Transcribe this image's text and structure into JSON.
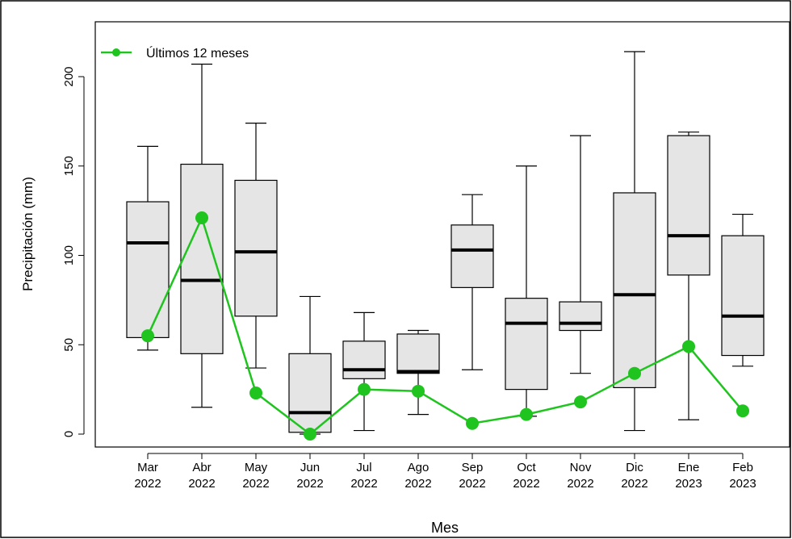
{
  "chart_data": {
    "type": "boxplot",
    "xlabel": "Mes",
    "ylabel": "Precipitación (mm)",
    "categories": [
      {
        "month": "Mar",
        "year": "2022"
      },
      {
        "month": "Abr",
        "year": "2022"
      },
      {
        "month": "May",
        "year": "2022"
      },
      {
        "month": "Jun",
        "year": "2022"
      },
      {
        "month": "Jul",
        "year": "2022"
      },
      {
        "month": "Ago",
        "year": "2022"
      },
      {
        "month": "Sep",
        "year": "2022"
      },
      {
        "month": "Oct",
        "year": "2022"
      },
      {
        "month": "Nov",
        "year": "2022"
      },
      {
        "month": "Dic",
        "year": "2022"
      },
      {
        "month": "Ene",
        "year": "2023"
      },
      {
        "month": "Feb",
        "year": "2023"
      }
    ],
    "ylim": [
      -10,
      230
    ],
    "yticks": [
      0,
      50,
      100,
      150,
      200
    ],
    "boxes": [
      {
        "min": 47,
        "q1": 54,
        "median": 107,
        "q3": 130,
        "max": 161
      },
      {
        "min": 15,
        "q1": 45,
        "median": 86,
        "q3": 151,
        "max": 207
      },
      {
        "min": 37,
        "q1": 66,
        "median": 102,
        "q3": 142,
        "max": 174
      },
      {
        "min": 0,
        "q1": 1,
        "median": 12,
        "q3": 45,
        "max": 77
      },
      {
        "min": 2,
        "q1": 31,
        "median": 36,
        "q3": 52,
        "max": 68
      },
      {
        "min": 11,
        "q1": 34,
        "median": 35,
        "q3": 56,
        "max": 58
      },
      {
        "min": 36,
        "q1": 82,
        "median": 103,
        "q3": 117,
        "max": 134
      },
      {
        "min": 10,
        "q1": 25,
        "median": 62,
        "q3": 76,
        "max": 150
      },
      {
        "min": 34,
        "q1": 58,
        "median": 62,
        "q3": 74,
        "max": 167
      },
      {
        "min": 2,
        "q1": 26,
        "median": 78,
        "q3": 135,
        "max": 214
      },
      {
        "min": 8,
        "q1": 89,
        "median": 111,
        "q3": 167,
        "max": 169
      },
      {
        "min": 38,
        "q1": 44,
        "median": 66,
        "q3": 111,
        "max": 123
      }
    ],
    "series": [
      {
        "name": "Últimos 12 meses",
        "values": [
          55,
          121,
          23,
          0,
          25,
          24,
          6,
          11,
          18,
          34,
          49,
          13
        ],
        "color": "#1fc41f"
      }
    ],
    "box_fill": "#e5e5e5",
    "legend_position": "top-left",
    "grid": false
  }
}
